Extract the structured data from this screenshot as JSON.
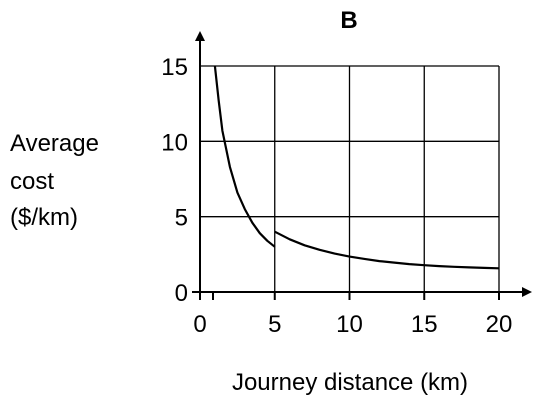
{
  "chart_data": {
    "type": "line",
    "title": "B",
    "xlabel": "Journey distance (km)",
    "ylabel_lines": [
      "Average",
      "cost",
      "($/km)"
    ],
    "xlim": [
      0,
      20
    ],
    "ylim": [
      0,
      15
    ],
    "x_ticks": [
      0,
      5,
      10,
      15,
      20
    ],
    "y_ticks": [
      0,
      5,
      10,
      15
    ],
    "grid": true,
    "series": [
      {
        "points": [
          [
            1,
            15
          ],
          [
            1.25,
            12.7
          ],
          [
            1.5,
            10.7
          ],
          [
            2,
            8.3
          ],
          [
            2.5,
            6.6
          ],
          [
            3,
            5.5
          ],
          [
            3.5,
            4.6
          ],
          [
            4,
            3.9
          ],
          [
            4.5,
            3.4
          ],
          [
            5,
            3.0
          ]
        ]
      },
      {
        "points": [
          [
            5,
            4.0
          ],
          [
            6,
            3.5
          ],
          [
            7,
            3.1
          ],
          [
            8,
            2.8
          ],
          [
            9,
            2.55
          ],
          [
            10,
            2.35
          ],
          [
            11,
            2.2
          ],
          [
            12,
            2.05
          ],
          [
            13,
            1.95
          ],
          [
            14,
            1.85
          ],
          [
            15,
            1.78
          ],
          [
            16,
            1.72
          ],
          [
            17,
            1.67
          ],
          [
            18,
            1.63
          ],
          [
            19,
            1.6
          ],
          [
            20,
            1.57
          ]
        ]
      }
    ]
  }
}
